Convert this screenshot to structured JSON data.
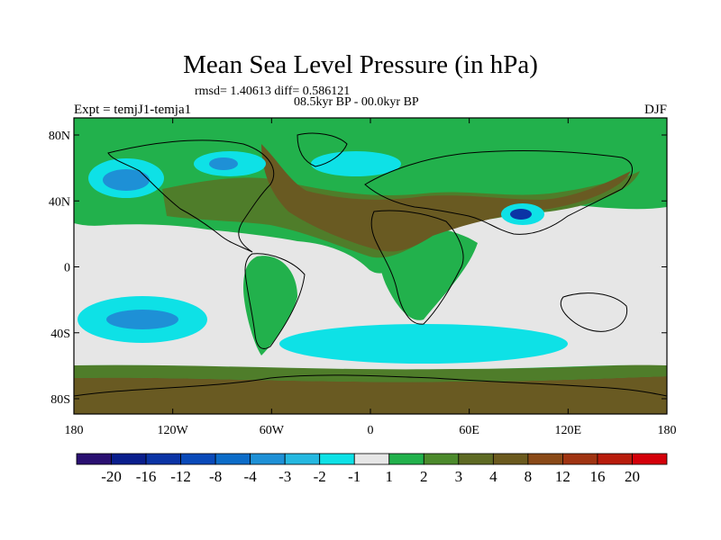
{
  "title": "Mean Sea Level Pressure (in hPa)",
  "stats": "rmsd= 1.40613 diff= 0.586121",
  "period": "08.5kyr BP - 00.0kyr BP",
  "experiment": "Expt = temjJ1-temja1",
  "season": "DJF",
  "map_axes": {
    "x_ticks": [
      "180",
      "120W",
      "60W",
      "0",
      "60E",
      "120E",
      "180"
    ],
    "y_ticks": [
      "80N",
      "40N",
      "0",
      "40S",
      "80S"
    ]
  },
  "colorbar": {
    "bins": [
      {
        "color": "#2a1071"
      },
      {
        "color": "#0a1e8c"
      },
      {
        "color": "#0b34a5"
      },
      {
        "color": "#0a4ab9"
      },
      {
        "color": "#0c6cc8"
      },
      {
        "color": "#1e90d6"
      },
      {
        "color": "#25b8e0"
      },
      {
        "color": "#0ee1e6"
      },
      {
        "color": "#e6e6e6"
      },
      {
        "color": "#22b14c"
      },
      {
        "color": "#4c8a2c"
      },
      {
        "color": "#5e6a24"
      },
      {
        "color": "#6b5a1e"
      },
      {
        "color": "#8a4a18"
      },
      {
        "color": "#a03412"
      },
      {
        "color": "#b81c0c"
      },
      {
        "color": "#d4000a"
      }
    ],
    "labels": [
      "-20",
      "-16",
      "-12",
      "-8",
      "-4",
      "-3",
      "-2",
      "-1",
      "1",
      "2",
      "3",
      "4",
      "8",
      "12",
      "16",
      "20"
    ]
  },
  "field_colors": {
    "neutral": "#e6e6e6",
    "green": "#22b14c",
    "olive": "#4f7d2a",
    "brown": "#695a22",
    "cyan": "#0ee1e6",
    "blue": "#1e90d6",
    "deep_blue": "#0b34a5"
  }
}
